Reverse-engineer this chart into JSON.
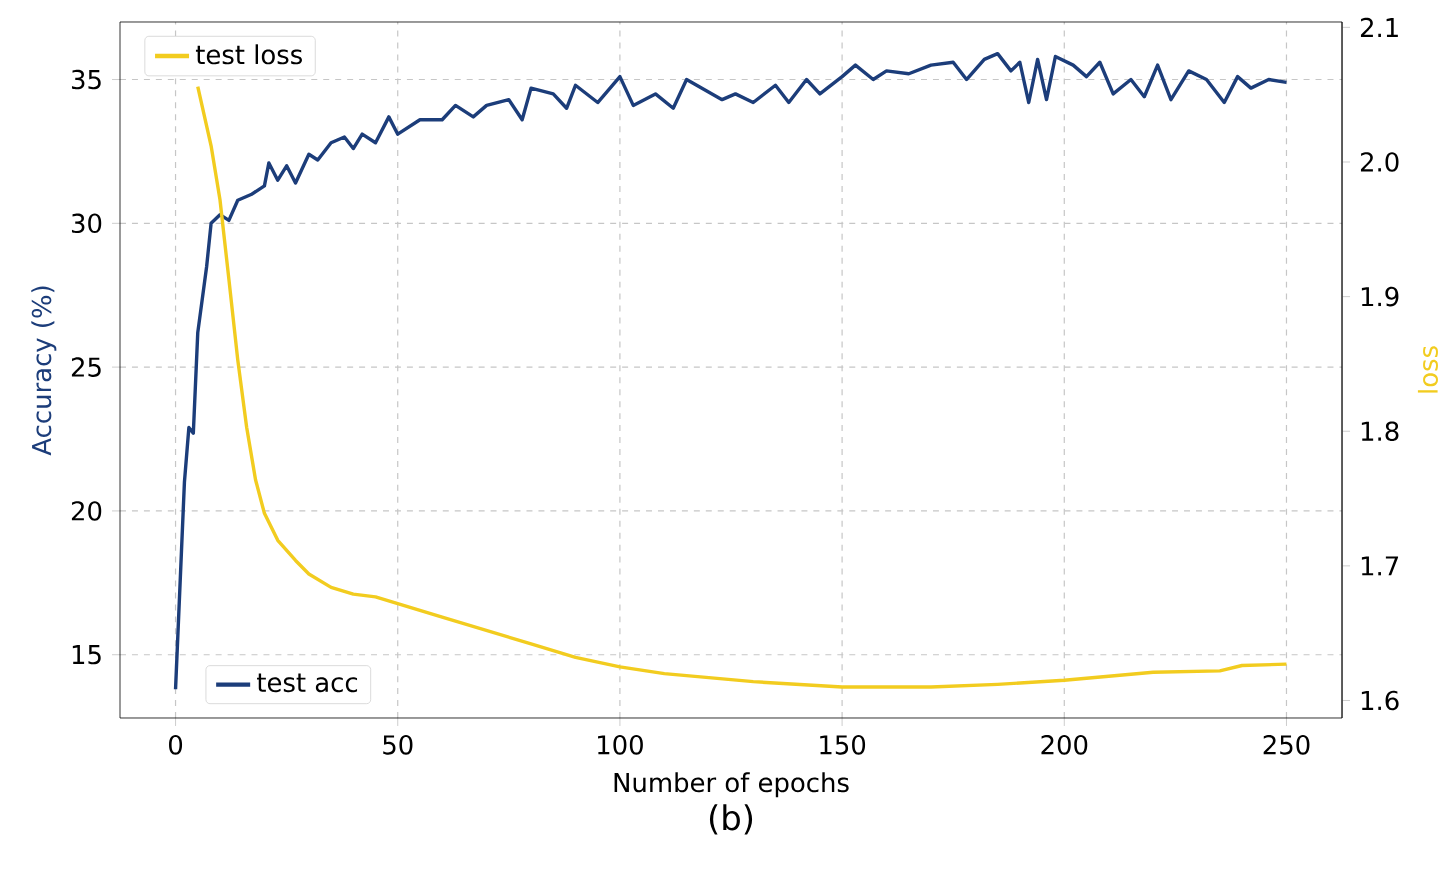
{
  "chart_data": {
    "type": "line",
    "xlabel": "Number of epochs",
    "ylabel": "Accuracy (%)",
    "y2label": "loss",
    "xlim": [
      -12.5,
      262.5
    ],
    "ylim": [
      12.8,
      37.0
    ],
    "y2lim": [
      1.587,
      2.104
    ],
    "xticks": [
      0,
      50,
      100,
      150,
      200,
      250
    ],
    "yticks": [
      15,
      20,
      25,
      30,
      35
    ],
    "y2ticks": [
      1.6,
      1.7,
      1.8,
      1.9,
      {
        "value": 2.0,
        "label": "2.0"
      },
      2.1
    ],
    "grid": true,
    "line_style": "solid",
    "marker": "none",
    "legend": "left",
    "annotations": [
      "(b)"
    ],
    "series": [
      {
        "name": "test acc",
        "color": "#1c3d7a",
        "axis": "y",
        "x": [
          0,
          2,
          3,
          4,
          5,
          7,
          8,
          10,
          12,
          14,
          17,
          20,
          21,
          23,
          25,
          27,
          30,
          32,
          35,
          38,
          40,
          42,
          45,
          48,
          50,
          55,
          60,
          63,
          67,
          70,
          75,
          78,
          80,
          85,
          88,
          90,
          95,
          100,
          103,
          108,
          112,
          115,
          123,
          126,
          130,
          135,
          138,
          142,
          145,
          150,
          153,
          157,
          160,
          165,
          170,
          175,
          178,
          182,
          185,
          188,
          190,
          192,
          194,
          196,
          198,
          202,
          205,
          208,
          211,
          215,
          218,
          221,
          224,
          228,
          232,
          236,
          239,
          242,
          246,
          250
        ],
        "values": [
          13.8,
          21.0,
          22.9,
          22.7,
          26.2,
          28.5,
          30.0,
          30.3,
          30.1,
          30.8,
          31.0,
          31.3,
          32.1,
          31.5,
          32.0,
          31.4,
          32.4,
          32.2,
          32.8,
          33.0,
          32.6,
          33.1,
          32.8,
          33.7,
          33.1,
          33.6,
          33.6,
          34.1,
          33.7,
          34.1,
          34.3,
          33.6,
          34.7,
          34.5,
          34.0,
          34.8,
          34.2,
          35.1,
          34.1,
          34.5,
          34.0,
          35.0,
          34.3,
          34.5,
          34.2,
          34.8,
          34.2,
          35.0,
          34.5,
          35.1,
          35.5,
          35.0,
          35.3,
          35.2,
          35.5,
          35.6,
          35.0,
          35.7,
          35.9,
          35.3,
          35.6,
          34.2,
          35.7,
          34.3,
          35.8,
          35.5,
          35.1,
          35.6,
          34.5,
          35.0,
          34.4,
          35.5,
          34.3,
          35.3,
          35.0,
          34.2,
          35.1,
          34.7,
          35.0,
          34.9
        ]
      },
      {
        "name": "test loss",
        "color": "#f2cc1f",
        "axis": "y2",
        "x": [
          5,
          8,
          10,
          12,
          14,
          16,
          18,
          20,
          23,
          27,
          30,
          35,
          40,
          45,
          50,
          60,
          70,
          80,
          90,
          100,
          110,
          120,
          130,
          150,
          170,
          185,
          200,
          220,
          235,
          240,
          250
        ],
        "values": [
          2.056,
          2.012,
          1.972,
          1.913,
          1.853,
          1.803,
          1.764,
          1.739,
          1.719,
          1.704,
          1.694,
          1.684,
          1.679,
          1.677,
          1.672,
          1.662,
          1.652,
          1.642,
          1.632,
          1.625,
          1.62,
          1.617,
          1.614,
          1.61,
          1.61,
          1.612,
          1.615,
          1.621,
          1.622,
          1.626,
          1.627
        ]
      }
    ]
  }
}
